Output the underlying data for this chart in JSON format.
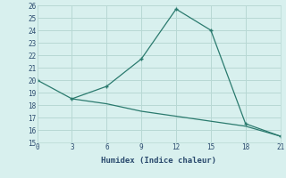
{
  "line1_x": [
    0,
    3,
    6,
    9,
    12,
    15,
    18,
    21
  ],
  "line1_y": [
    20.0,
    18.5,
    19.5,
    21.7,
    25.7,
    24.0,
    16.5,
    15.5
  ],
  "line2_x": [
    3,
    6,
    9,
    12,
    15,
    18,
    21
  ],
  "line2_y": [
    18.5,
    18.1,
    17.5,
    17.1,
    16.7,
    16.3,
    15.5
  ],
  "line_color": "#2a7a6e",
  "bg_color": "#d8f0ee",
  "grid_color": "#b8d8d4",
  "xlabel": "Humidex (Indice chaleur)",
  "xlim": [
    0,
    21
  ],
  "ylim": [
    15,
    26
  ],
  "xticks": [
    0,
    3,
    6,
    9,
    12,
    15,
    18,
    21
  ],
  "yticks": [
    15,
    16,
    17,
    18,
    19,
    20,
    21,
    22,
    23,
    24,
    25,
    26
  ],
  "tick_color": "#2a4a6e",
  "marker": "+"
}
